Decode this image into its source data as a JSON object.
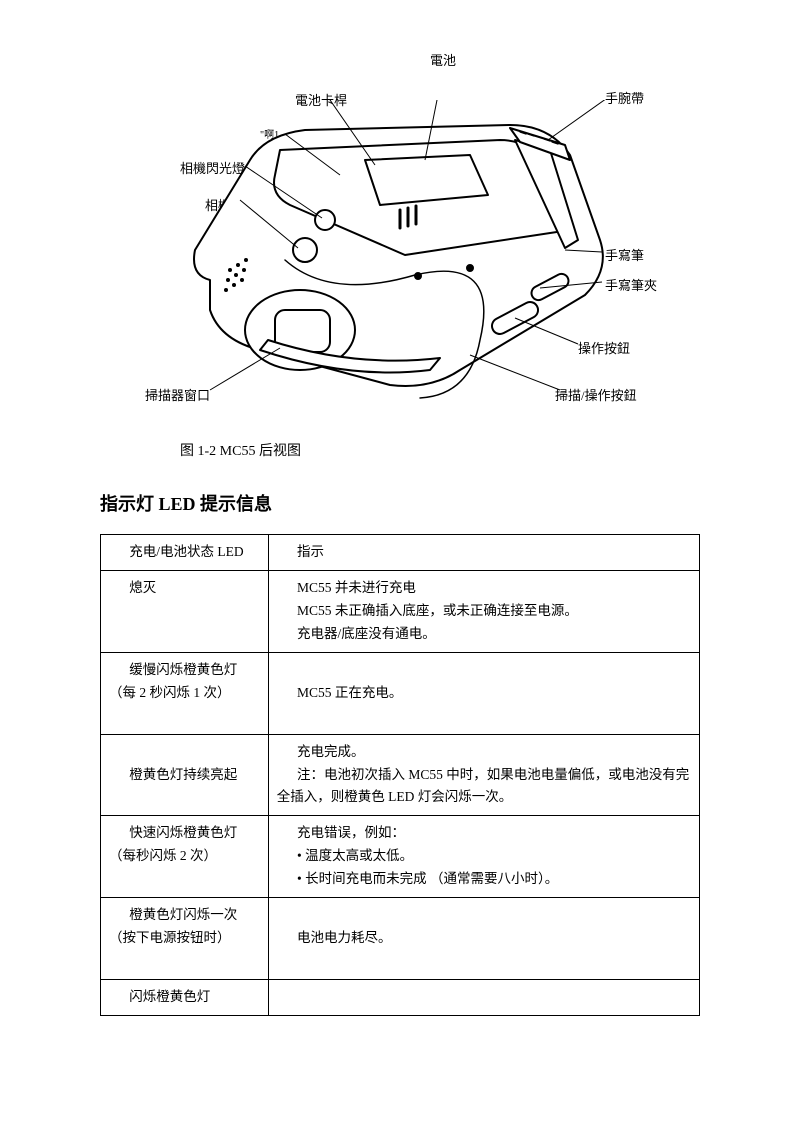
{
  "diagram": {
    "labels": {
      "battery": "電池",
      "battery_latch": "電池卡桿",
      "strap": "手腕帶",
      "small_top": "\"啊1 -",
      "flash": "相機閃光燈",
      "camera": "相機",
      "stylus": "手寫筆",
      "stylus_clip": "手寫筆夾",
      "action_btn": "操作按鈕",
      "scan_btn": "掃描/操作按鈕",
      "scanner_window": "掃描器窗口"
    },
    "caption": "图  1-2        MC55   后视图"
  },
  "section_title": "指示灯 LED 提示信息",
  "table": {
    "header": {
      "col1": "充电/电池状态 LED",
      "col2": "指示"
    },
    "rows": [
      {
        "col1": "熄灭",
        "col2": "MC55   并未进行充电\nMC55   未正确插入底座，或未正确连接至电源。\n充电器/底座没有通电。"
      },
      {
        "col1": "缓慢闪烁橙黄色灯 （每 2 秒闪烁 1 次）",
        "col2": "MC55   正在充电。"
      },
      {
        "col1": "橙黄色灯持续亮起",
        "col2": "充电完成。\n注：电池初次插入  MC55  中时，如果电池电量偏低，或电池没有完全插入，则橙黄色 LED  灯会闪烁一次。"
      },
      {
        "col1": "快速闪烁橙黄色灯 （每秒闪烁 2 次）",
        "col2": "充电错误，例如：\n• 温度太高或太低。\n• 长时间充电而未完成 （通常需要八小时）。"
      },
      {
        "col1": "橙黄色灯闪烁一次 （按下电源按钮时）",
        "col2": "电池电力耗尽。"
      },
      {
        "col1": "闪烁橙黄色灯",
        "col2": ""
      }
    ]
  }
}
